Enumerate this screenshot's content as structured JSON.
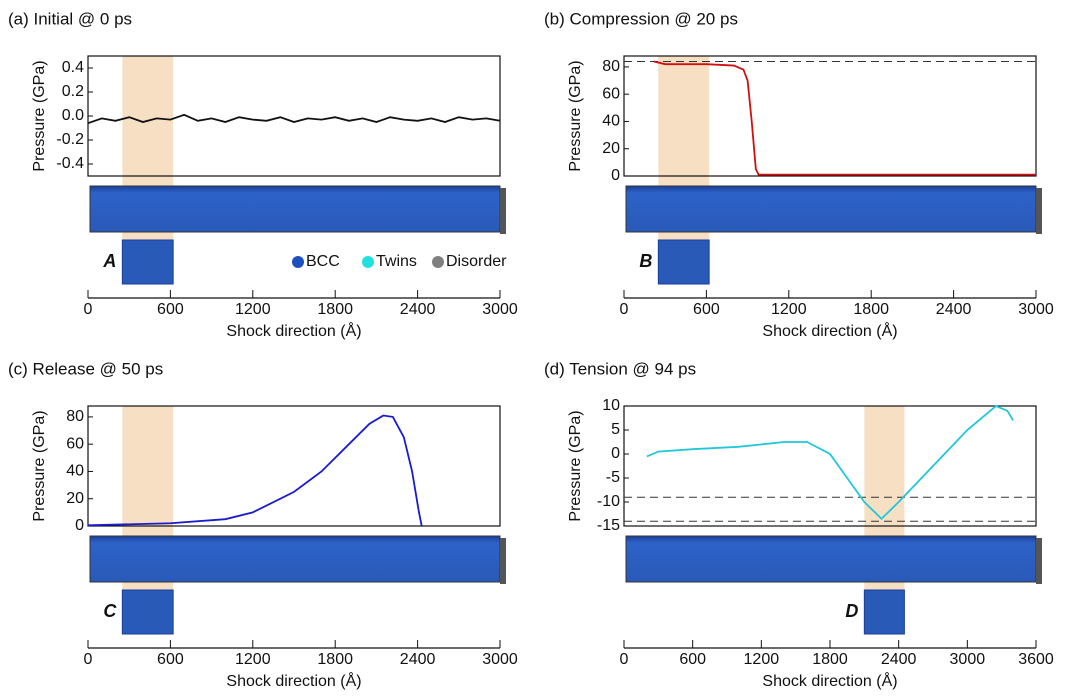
{
  "chart_data": [
    {
      "type": "line",
      "title": "(a) Initial @ 0 ps",
      "ylabel": "Pressure (GPa)",
      "xlabel": "Shock direction (Å)",
      "xlim": [
        0,
        3000
      ],
      "xticks": [
        0,
        600,
        1200,
        1800,
        2400,
        3000
      ],
      "ylim": [
        -0.5,
        0.5
      ],
      "yticks": [
        0.4,
        0.2,
        {
          "value": 0,
          "label": "0.0"
        },
        -0.2,
        -0.4
      ],
      "highlight": [
        250,
        620
      ],
      "inset_label": "A",
      "legend": [
        {
          "name": "BCC",
          "color": "#1c4fc0"
        },
        {
          "name": "Twins",
          "color": "#22e0e0"
        },
        {
          "name": "Disorder",
          "color": "#808080"
        }
      ],
      "series": [
        {
          "color": "#111111",
          "x": [
            0,
            100,
            200,
            300,
            400,
            500,
            600,
            700,
            800,
            900,
            1000,
            1100,
            1200,
            1300,
            1400,
            1500,
            1600,
            1700,
            1800,
            1900,
            2000,
            2100,
            2200,
            2300,
            2400,
            2500,
            2600,
            2700,
            2800,
            2900,
            3000
          ],
          "values": [
            -0.06,
            -0.02,
            -0.04,
            -0.01,
            -0.05,
            -0.02,
            -0.03,
            0.01,
            -0.04,
            -0.02,
            -0.05,
            -0.01,
            -0.03,
            -0.04,
            -0.01,
            -0.05,
            -0.02,
            -0.03,
            -0.01,
            -0.04,
            -0.02,
            -0.05,
            -0.01,
            -0.03,
            -0.04,
            -0.02,
            -0.05,
            -0.01,
            -0.03,
            -0.02,
            -0.04
          ]
        }
      ]
    },
    {
      "type": "line",
      "title": "(b) Compression @ 20 ps",
      "ylabel": "Pressure (GPa)",
      "xlabel": "Shock direction (Å)",
      "xlim": [
        0,
        3000
      ],
      "xticks": [
        0,
        600,
        1200,
        1800,
        2400,
        3000
      ],
      "ylim": [
        0,
        88
      ],
      "yticks": [
        80,
        60,
        40,
        20,
        0
      ],
      "highlight": [
        250,
        620
      ],
      "inset_label": "B",
      "reference_lines": [
        84
      ],
      "series": [
        {
          "color": "#d01010",
          "x": [
            217,
            300,
            600,
            800,
            870,
            900,
            930,
            960,
            980,
            1500,
            3000
          ],
          "values": [
            84,
            82,
            82,
            81,
            78,
            70,
            40,
            5,
            1,
            1,
            1
          ]
        }
      ]
    },
    {
      "type": "line",
      "title": "(c) Release @ 50 ps",
      "ylabel": "Pressure (GPa)",
      "xlabel": "Shock direction (Å)",
      "xlim": [
        0,
        3000
      ],
      "xticks": [
        0,
        600,
        1200,
        1800,
        2400,
        3000
      ],
      "ylim": [
        0,
        88
      ],
      "yticks": [
        80,
        60,
        40,
        20,
        0
      ],
      "highlight": [
        250,
        620
      ],
      "inset_label": "C",
      "series": [
        {
          "color": "#1a1ad0",
          "x": [
            0,
            600,
            1000,
            1200,
            1500,
            1700,
            1900,
            2050,
            2150,
            2220,
            2300,
            2360,
            2410,
            2430
          ],
          "values": [
            0.5,
            2,
            5,
            10,
            25,
            40,
            60,
            75,
            81,
            80,
            65,
            40,
            10,
            0
          ]
        }
      ]
    },
    {
      "type": "line",
      "title": "(d) Tension @ 94 ps",
      "ylabel": "Pressure (GPa)",
      "xlabel": "Shock direction (Å)",
      "xlim": [
        0,
        3600
      ],
      "xticks": [
        0,
        600,
        1200,
        1800,
        2400,
        3000,
        3600
      ],
      "ylim": [
        -15,
        10
      ],
      "yticks": [
        10,
        5,
        0,
        -5,
        -10,
        -15
      ],
      "highlight": [
        2100,
        2450
      ],
      "inset_label": "D",
      "reference_lines": [
        -9,
        -14
      ],
      "series": [
        {
          "color": "#20c8d8",
          "x": [
            200,
            300,
            600,
            1000,
            1400,
            1600,
            1800,
            1950,
            2100,
            2250,
            2400,
            2600,
            2800,
            3000,
            3250,
            3350,
            3400
          ],
          "values": [
            -0.5,
            0.5,
            1,
            1.5,
            2.5,
            2.5,
            0,
            -5,
            -10,
            -13.5,
            -10,
            -5,
            0,
            5,
            10,
            9,
            7
          ]
        }
      ]
    }
  ]
}
